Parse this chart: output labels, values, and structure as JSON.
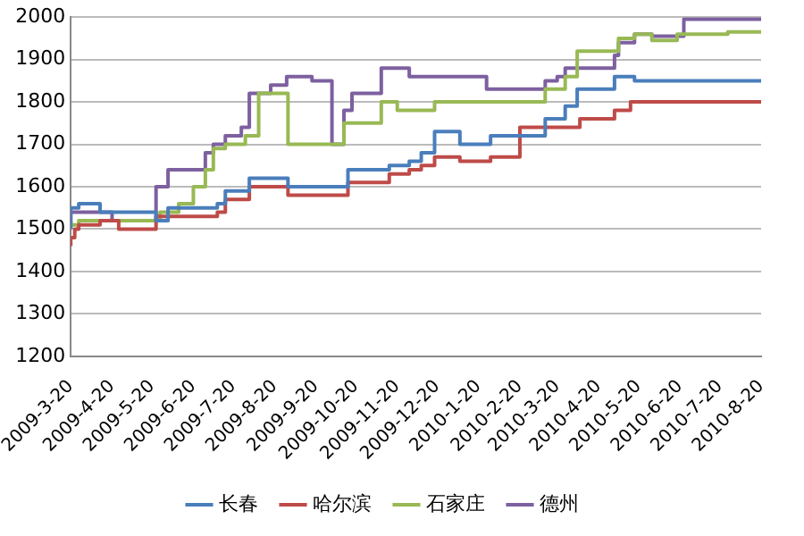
{
  "chart_data": {
    "type": "step",
    "ylim": [
      1200,
      2000
    ],
    "yticks": [
      1200,
      1300,
      1400,
      1500,
      1600,
      1700,
      1800,
      1900,
      2000
    ],
    "xlim": [
      "2009-03-20",
      "2010-08-20"
    ],
    "xticks": [
      {
        "value": "2009-03-20",
        "label": "2009-3-20"
      },
      {
        "value": "2009-04-20",
        "label": "2009-4-20"
      },
      {
        "value": "2009-05-20",
        "label": "2009-5-20"
      },
      {
        "value": "2009-06-20",
        "label": "2009-6-20"
      },
      {
        "value": "2009-07-20",
        "label": "2009-7-20"
      },
      {
        "value": "2009-08-20",
        "label": "2009-8-20"
      },
      {
        "value": "2009-09-20",
        "label": "2009-9-20"
      },
      {
        "value": "2009-10-20",
        "label": "2009-10-20"
      },
      {
        "value": "2009-11-20",
        "label": "2009-11-20"
      },
      {
        "value": "2009-12-20",
        "label": "2009-12-20"
      },
      {
        "value": "2010-01-20",
        "label": "2010-1-20"
      },
      {
        "value": "2010-02-20",
        "label": "2010-2-20"
      },
      {
        "value": "2010-03-20",
        "label": "2010-3-20"
      },
      {
        "value": "2010-04-20",
        "label": "2010-4-20"
      },
      {
        "value": "2010-05-20",
        "label": "2010-5-20"
      },
      {
        "value": "2010-06-20",
        "label": "2010-6-20"
      },
      {
        "value": "2010-07-20",
        "label": "2010-7-20"
      },
      {
        "value": "2010-08-20",
        "label": "2010-8-20"
      }
    ],
    "grid": "y",
    "legend": "bottom",
    "marker": "none",
    "series": [
      {
        "name": "长春",
        "color": "#4a7ebb",
        "x": [
          "2009-03-20",
          "2009-03-26",
          "2009-04-11",
          "2009-05-23",
          "2009-06-01",
          "2009-07-08",
          "2009-07-14",
          "2009-08-01",
          "2009-08-30",
          "2009-10-14",
          "2009-11-14",
          "2009-11-29",
          "2009-12-08",
          "2009-12-18",
          "2010-01-06",
          "2010-01-29",
          "2010-03-11",
          "2010-03-26",
          "2010-04-04",
          "2010-05-02",
          "2010-05-17",
          "2010-06-23",
          "2010-08-20"
        ],
        "values": [
          1500,
          1550,
          1560,
          1540,
          1520,
          1550,
          1560,
          1590,
          1620,
          1600,
          1640,
          1650,
          1660,
          1680,
          1730,
          1700,
          1720,
          1760,
          1790,
          1830,
          1860,
          1850,
          1850
        ]
      },
      {
        "name": "哈尔滨",
        "color": "#be4b48",
        "x": [
          "2009-03-20",
          "2009-03-23",
          "2009-03-26",
          "2009-04-11",
          "2009-04-25",
          "2009-05-23",
          "2009-07-08",
          "2009-07-14",
          "2009-08-01",
          "2009-08-30",
          "2009-10-14",
          "2009-11-14",
          "2009-11-29",
          "2009-12-08",
          "2009-12-18",
          "2010-01-06",
          "2010-01-29",
          "2010-02-20",
          "2010-04-06",
          "2010-05-02",
          "2010-05-14",
          "2010-05-26",
          "2010-08-20"
        ],
        "values": [
          1460,
          1480,
          1500,
          1510,
          1520,
          1500,
          1530,
          1540,
          1570,
          1600,
          1580,
          1610,
          1630,
          1640,
          1650,
          1670,
          1660,
          1670,
          1740,
          1760,
          1780,
          1800,
          1800
        ]
      },
      {
        "name": "石家庄",
        "color": "#98b954",
        "x": [
          "2009-03-20",
          "2009-03-26",
          "2009-05-26",
          "2009-06-09",
          "2009-06-20",
          "2009-06-29",
          "2009-07-05",
          "2009-07-14",
          "2009-07-29",
          "2009-08-08",
          "2009-08-30",
          "2009-10-11",
          "2009-11-08",
          "2009-11-20",
          "2009-12-18",
          "2010-03-11",
          "2010-03-26",
          "2010-04-04",
          "2010-05-05",
          "2010-05-17",
          "2010-05-30",
          "2010-06-18",
          "2010-07-26",
          "2010-08-20"
        ],
        "values": [
          1500,
          1510,
          1520,
          1540,
          1560,
          1600,
          1640,
          1690,
          1700,
          1720,
          1820,
          1700,
          1750,
          1800,
          1780,
          1800,
          1830,
          1860,
          1920,
          1950,
          1960,
          1945,
          1960,
          1965
        ]
      },
      {
        "name": "德州",
        "color": "#7d60a0",
        "x": [
          "2009-03-20",
          "2009-04-20",
          "2009-05-23",
          "2009-06-01",
          "2009-06-29",
          "2009-07-05",
          "2009-07-14",
          "2009-07-26",
          "2009-08-01",
          "2009-08-17",
          "2009-08-29",
          "2009-09-17",
          "2009-10-02",
          "2009-10-11",
          "2009-10-17",
          "2009-11-08",
          "2009-11-29",
          "2010-01-26",
          "2010-03-11",
          "2010-03-20",
          "2010-03-26",
          "2010-05-02",
          "2010-05-05",
          "2010-05-17",
          "2010-05-30",
          "2010-06-23",
          "2010-08-14",
          "2010-08-20"
        ],
        "values": [
          1500,
          1540,
          1520,
          1600,
          1640,
          1680,
          1700,
          1720,
          1740,
          1820,
          1840,
          1860,
          1850,
          1700,
          1780,
          1820,
          1880,
          1860,
          1830,
          1850,
          1860,
          1880,
          1910,
          1940,
          1960,
          1955,
          1995,
          1995
        ]
      }
    ]
  }
}
